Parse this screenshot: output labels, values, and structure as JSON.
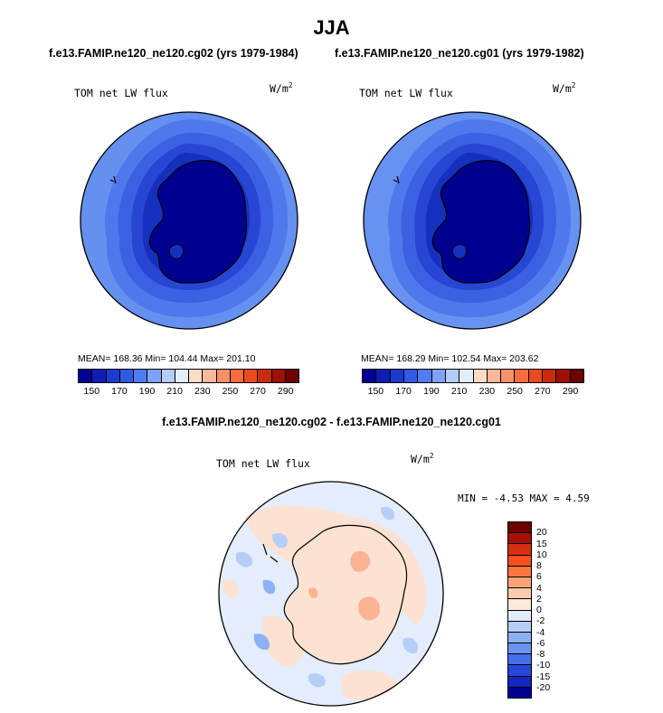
{
  "title": "JJA",
  "panels": [
    {
      "header": "f.e13.FAMIP.ne120_ne120.cg02 (yrs 1979-1984)",
      "variable": "TOM net LW flux",
      "units_base": "W/m",
      "units_exp": "2",
      "stats_text": "MEAN= 168.36   Min= 104.44   Max= 201.10",
      "stats": {
        "mean": 168.36,
        "min": 104.44,
        "max": 201.1
      }
    },
    {
      "header": "f.e13.FAMIP.ne120_ne120.cg01 (yrs 1979-1982)",
      "variable": "TOM net LW flux",
      "units_base": "W/m",
      "units_exp": "2",
      "stats_text": "MEAN= 168.29   Min= 102.54   Max= 203.62",
      "stats": {
        "mean": 168.29,
        "min": 102.54,
        "max": 203.62
      }
    }
  ],
  "diff": {
    "header": "f.e13.FAMIP.ne120_ne120.cg02 - f.e13.FAMIP.ne120_ne120.cg01",
    "variable": "TOM net LW flux",
    "units_base": "W/m",
    "units_exp": "2",
    "minmax_text": "MIN =  -4.53  MAX =   4.59",
    "stats": {
      "min": -4.53,
      "max": 4.59
    }
  },
  "abs_colorbar": {
    "colors": [
      "#000094",
      "#0d1eb4",
      "#1a3ad0",
      "#2f5ae6",
      "#4f7cf2",
      "#7ea3f6",
      "#b2cdf9",
      "#e2edfd",
      "#fddcc6",
      "#fcb79a",
      "#fa9068",
      "#f76b3f",
      "#ea4a1e",
      "#cb2b0c",
      "#9e1004",
      "#6e0000"
    ],
    "tick_labels": [
      "150",
      "170",
      "190",
      "210",
      "230",
      "250",
      "270",
      "290"
    ]
  },
  "diff_colorbar": {
    "colors": [
      "#6e0000",
      "#a81005",
      "#d92e12",
      "#f65021",
      "#fa7840",
      "#fca478",
      "#fdcbb0",
      "#fde8dc",
      "#e1ecfd",
      "#b6cdf8",
      "#8db1f5",
      "#6a94f0",
      "#456ee8",
      "#2747db",
      "#1127bf",
      "#000092"
    ],
    "tick_labels": [
      "20",
      "15",
      "10",
      "8",
      "6",
      "4",
      "2",
      "0",
      "-2",
      "-4",
      "-6",
      "-8",
      "-10",
      "-15",
      "-20"
    ]
  }
}
